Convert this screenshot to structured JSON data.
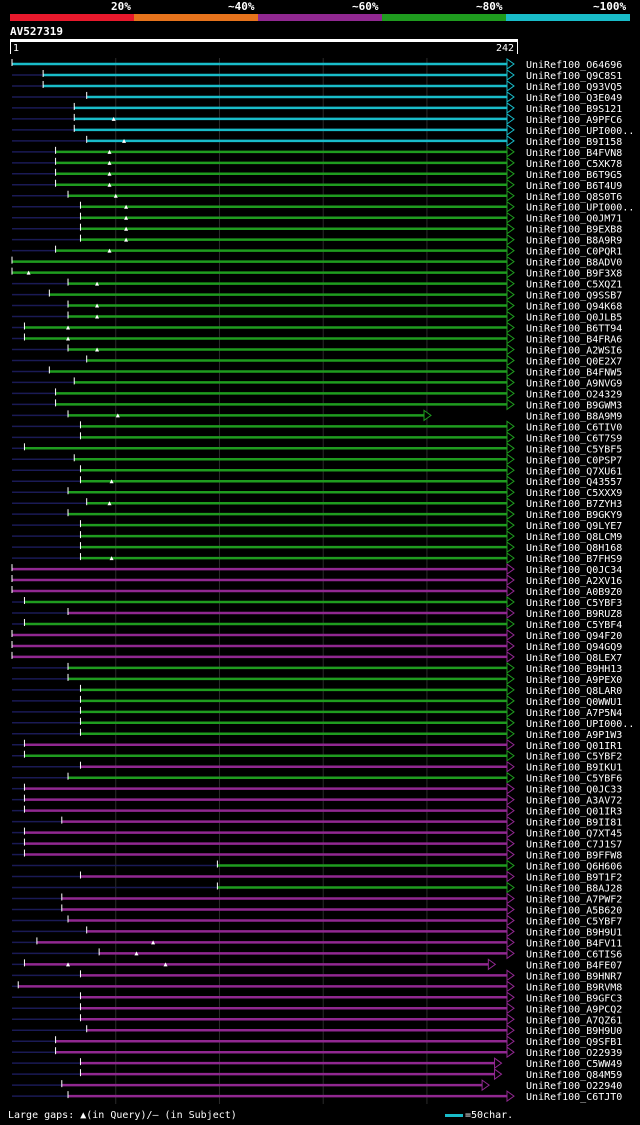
{
  "legend": {
    "segments": [
      {
        "label": "20%",
        "color": "#e8192c"
      },
      {
        "label": "~40%",
        "color": "#e6731c"
      },
      {
        "label": "~60%",
        "color": "#912891"
      },
      {
        "label": "~80%",
        "color": "#1f9c1f"
      },
      {
        "label": "~100%",
        "color": "#19bcc9"
      }
    ]
  },
  "query": {
    "id": "AV527319",
    "start": "1",
    "end": "242"
  },
  "chart_data": {
    "type": "alignment",
    "query_length": 242,
    "colors": {
      "cyan": "#19bcc9",
      "green": "#1f9c1f",
      "purple": "#912891"
    },
    "hits": [
      {
        "name": "UniRef100_O64696",
        "start": 1,
        "end": 242,
        "color": "cyan",
        "gaps": []
      },
      {
        "name": "UniRef100_Q9C8S1",
        "start": 16,
        "end": 242,
        "color": "cyan",
        "gaps": []
      },
      {
        "name": "UniRef100_Q93VQ5",
        "start": 16,
        "end": 242,
        "color": "cyan",
        "gaps": []
      },
      {
        "name": "UniRef100_Q3E049",
        "start": 37,
        "end": 242,
        "color": "cyan",
        "gaps": []
      },
      {
        "name": "UniRef100_B9S121",
        "start": 31,
        "end": 242,
        "color": "cyan",
        "gaps": []
      },
      {
        "name": "UniRef100_A9PFC6",
        "start": 31,
        "end": 242,
        "color": "cyan",
        "gaps": [
          50
        ]
      },
      {
        "name": "UniRef100_UPI000..",
        "start": 31,
        "end": 242,
        "color": "cyan",
        "gaps": []
      },
      {
        "name": "UniRef100_B9I158",
        "start": 37,
        "end": 242,
        "color": "cyan",
        "gaps": [
          55
        ]
      },
      {
        "name": "UniRef100_B4FVN8",
        "start": 22,
        "end": 242,
        "color": "green",
        "gaps": [
          48
        ]
      },
      {
        "name": "UniRef100_C5XK78",
        "start": 22,
        "end": 242,
        "color": "green",
        "gaps": [
          48
        ]
      },
      {
        "name": "UniRef100_B6T9G5",
        "start": 22,
        "end": 242,
        "color": "green",
        "gaps": [
          48
        ]
      },
      {
        "name": "UniRef100_B6T4U9",
        "start": 22,
        "end": 242,
        "color": "green",
        "gaps": [
          48
        ]
      },
      {
        "name": "UniRef100_Q8S0T6",
        "start": 28,
        "end": 242,
        "color": "green",
        "gaps": [
          51
        ]
      },
      {
        "name": "UniRef100_UPI000..",
        "start": 34,
        "end": 242,
        "color": "green",
        "gaps": [
          56
        ]
      },
      {
        "name": "UniRef100_Q0JM71",
        "start": 34,
        "end": 242,
        "color": "green",
        "gaps": [
          56
        ]
      },
      {
        "name": "UniRef100_B9EXB8",
        "start": 34,
        "end": 242,
        "color": "green",
        "gaps": [
          56
        ]
      },
      {
        "name": "UniRef100_B8A9R9",
        "start": 34,
        "end": 242,
        "color": "green",
        "gaps": [
          56
        ]
      },
      {
        "name": "UniRef100_C0PQR1",
        "start": 22,
        "end": 242,
        "color": "green",
        "gaps": [
          48
        ]
      },
      {
        "name": "UniRef100_B8ADV0",
        "start": 1,
        "end": 242,
        "color": "green",
        "gaps": []
      },
      {
        "name": "UniRef100_B9F3X8",
        "start": 1,
        "end": 242,
        "color": "green",
        "gaps": [
          9
        ]
      },
      {
        "name": "UniRef100_C5XQZ1",
        "start": 28,
        "end": 242,
        "color": "green",
        "gaps": [
          42
        ]
      },
      {
        "name": "UniRef100_Q9SSB7",
        "start": 19,
        "end": 242,
        "color": "green",
        "gaps": []
      },
      {
        "name": "UniRef100_Q94K68",
        "start": 28,
        "end": 242,
        "color": "green",
        "gaps": [
          42
        ]
      },
      {
        "name": "UniRef100_Q0JLB5",
        "start": 28,
        "end": 242,
        "color": "green",
        "gaps": [
          42
        ]
      },
      {
        "name": "UniRef100_B6TT94",
        "start": 7,
        "end": 242,
        "color": "green",
        "gaps": [
          28
        ]
      },
      {
        "name": "UniRef100_B4FRA6",
        "start": 7,
        "end": 242,
        "color": "green",
        "gaps": [
          28
        ]
      },
      {
        "name": "UniRef100_A2WSI6",
        "start": 28,
        "end": 242,
        "color": "green",
        "gaps": [
          42
        ]
      },
      {
        "name": "UniRef100_Q0E2X7",
        "start": 37,
        "end": 242,
        "color": "green",
        "gaps": []
      },
      {
        "name": "UniRef100_B4FNW5",
        "start": 19,
        "end": 242,
        "color": "green",
        "gaps": []
      },
      {
        "name": "UniRef100_A9NVG9",
        "start": 31,
        "end": 242,
        "color": "green",
        "gaps": []
      },
      {
        "name": "UniRef100_O24329",
        "start": 22,
        "end": 242,
        "color": "green",
        "gaps": []
      },
      {
        "name": "UniRef100_B9GWM3",
        "start": 22,
        "end": 242,
        "color": "green",
        "gaps": []
      },
      {
        "name": "UniRef100_B8A9M9",
        "start": 28,
        "end": 202,
        "color": "green",
        "gaps": [
          52
        ]
      },
      {
        "name": "UniRef100_C6TIV0",
        "start": 34,
        "end": 242,
        "color": "green",
        "gaps": []
      },
      {
        "name": "UniRef100_C6T7S9",
        "start": 34,
        "end": 242,
        "color": "green",
        "gaps": []
      },
      {
        "name": "UniRef100_C5YBF5",
        "start": 7,
        "end": 242,
        "color": "green",
        "gaps": []
      },
      {
        "name": "UniRef100_C0PSP7",
        "start": 31,
        "end": 242,
        "color": "green",
        "gaps": []
      },
      {
        "name": "UniRef100_Q7XU61",
        "start": 34,
        "end": 242,
        "color": "green",
        "gaps": []
      },
      {
        "name": "UniRef100_Q43557",
        "start": 34,
        "end": 242,
        "color": "green",
        "gaps": [
          49
        ]
      },
      {
        "name": "UniRef100_C5XXX9",
        "start": 28,
        "end": 242,
        "color": "green",
        "gaps": []
      },
      {
        "name": "UniRef100_B7ZYH3",
        "start": 37,
        "end": 242,
        "color": "green",
        "gaps": [
          48
        ]
      },
      {
        "name": "UniRef100_B9GKY9",
        "start": 28,
        "end": 242,
        "color": "green",
        "gaps": []
      },
      {
        "name": "UniRef100_Q9LYE7",
        "start": 34,
        "end": 242,
        "color": "green",
        "gaps": []
      },
      {
        "name": "UniRef100_Q8LCM9",
        "start": 34,
        "end": 242,
        "color": "green",
        "gaps": []
      },
      {
        "name": "UniRef100_Q8H168",
        "start": 34,
        "end": 242,
        "color": "green",
        "gaps": []
      },
      {
        "name": "UniRef100_B7FHS9",
        "start": 34,
        "end": 242,
        "color": "green",
        "gaps": [
          49
        ]
      },
      {
        "name": "UniRef100_Q0JC34",
        "start": 1,
        "end": 242,
        "color": "purple",
        "gaps": []
      },
      {
        "name": "UniRef100_A2XV16",
        "start": 1,
        "end": 242,
        "color": "purple",
        "gaps": []
      },
      {
        "name": "UniRef100_A0B9Z0",
        "start": 1,
        "end": 242,
        "color": "purple",
        "gaps": []
      },
      {
        "name": "UniRef100_C5YBF3",
        "start": 7,
        "end": 242,
        "color": "green",
        "gaps": []
      },
      {
        "name": "UniRef100_B9RUZ8",
        "start": 28,
        "end": 242,
        "color": "purple",
        "gaps": []
      },
      {
        "name": "UniRef100_C5YBF4",
        "start": 7,
        "end": 242,
        "color": "green",
        "gaps": []
      },
      {
        "name": "UniRef100_Q94F20",
        "start": 1,
        "end": 242,
        "color": "purple",
        "gaps": []
      },
      {
        "name": "UniRef100_Q94GQ9",
        "start": 1,
        "end": 242,
        "color": "purple",
        "gaps": []
      },
      {
        "name": "UniRef100_Q8LEX7",
        "start": 1,
        "end": 242,
        "color": "purple",
        "gaps": []
      },
      {
        "name": "UniRef100_B9HH13",
        "start": 28,
        "end": 242,
        "color": "green",
        "gaps": []
      },
      {
        "name": "UniRef100_A9PEX0",
        "start": 28,
        "end": 242,
        "color": "green",
        "gaps": []
      },
      {
        "name": "UniRef100_Q8LAR0",
        "start": 34,
        "end": 242,
        "color": "green",
        "gaps": []
      },
      {
        "name": "UniRef100_Q0WWU1",
        "start": 34,
        "end": 242,
        "color": "green",
        "gaps": []
      },
      {
        "name": "UniRef100_A7P5N4",
        "start": 34,
        "end": 242,
        "color": "green",
        "gaps": []
      },
      {
        "name": "UniRef100_UPI000..",
        "start": 34,
        "end": 242,
        "color": "green",
        "gaps": []
      },
      {
        "name": "UniRef100_A9P1W3",
        "start": 34,
        "end": 242,
        "color": "green",
        "gaps": []
      },
      {
        "name": "UniRef100_Q01IR1",
        "start": 7,
        "end": 242,
        "color": "purple",
        "gaps": []
      },
      {
        "name": "UniRef100_C5YBF2",
        "start": 7,
        "end": 242,
        "color": "green",
        "gaps": []
      },
      {
        "name": "UniRef100_B9IKU1",
        "start": 34,
        "end": 242,
        "color": "purple",
        "gaps": []
      },
      {
        "name": "UniRef100_C5YBF6",
        "start": 28,
        "end": 242,
        "color": "green",
        "gaps": []
      },
      {
        "name": "UniRef100_Q0JC33",
        "start": 7,
        "end": 242,
        "color": "purple",
        "gaps": []
      },
      {
        "name": "UniRef100_A3AV72",
        "start": 7,
        "end": 242,
        "color": "purple",
        "gaps": []
      },
      {
        "name": "UniRef100_Q01IR3",
        "start": 7,
        "end": 242,
        "color": "purple",
        "gaps": []
      },
      {
        "name": "UniRef100_B9II81",
        "start": 25,
        "end": 242,
        "color": "purple",
        "gaps": []
      },
      {
        "name": "UniRef100_Q7XT45",
        "start": 7,
        "end": 242,
        "color": "purple",
        "gaps": []
      },
      {
        "name": "UniRef100_C7J1S7",
        "start": 7,
        "end": 242,
        "color": "purple",
        "gaps": []
      },
      {
        "name": "UniRef100_B9FFW8",
        "start": 7,
        "end": 242,
        "color": "purple",
        "gaps": []
      },
      {
        "name": "UniRef100_Q6H606",
        "start": 100,
        "end": 242,
        "color": "green",
        "gaps": []
      },
      {
        "name": "UniRef100_B9T1F2",
        "start": 34,
        "end": 242,
        "color": "purple",
        "gaps": []
      },
      {
        "name": "UniRef100_B8AJ28",
        "start": 100,
        "end": 242,
        "color": "green",
        "gaps": []
      },
      {
        "name": "UniRef100_A7PWF2",
        "start": 25,
        "end": 242,
        "color": "purple",
        "gaps": []
      },
      {
        "name": "UniRef100_A5B620",
        "start": 25,
        "end": 242,
        "color": "purple",
        "gaps": []
      },
      {
        "name": "UniRef100_C5YBF7",
        "start": 28,
        "end": 242,
        "color": "purple",
        "gaps": []
      },
      {
        "name": "UniRef100_B9H9U1",
        "start": 37,
        "end": 242,
        "color": "purple",
        "gaps": []
      },
      {
        "name": "UniRef100_B4FV11",
        "start": 13,
        "end": 242,
        "color": "purple",
        "gaps": [
          69
        ]
      },
      {
        "name": "UniRef100_C6TIS6",
        "start": 43,
        "end": 242,
        "color": "purple",
        "gaps": [
          61
        ]
      },
      {
        "name": "UniRef100_B4FE07",
        "start": 7,
        "end": 233,
        "color": "purple",
        "gaps": [
          28,
          75
        ]
      },
      {
        "name": "UniRef100_B9HNR7",
        "start": 34,
        "end": 242,
        "color": "purple",
        "gaps": []
      },
      {
        "name": "UniRef100_B9RVM8",
        "start": 4,
        "end": 242,
        "color": "purple",
        "gaps": []
      },
      {
        "name": "UniRef100_B9GFC3",
        "start": 34,
        "end": 242,
        "color": "purple",
        "gaps": []
      },
      {
        "name": "UniRef100_A9PCQ2",
        "start": 34,
        "end": 242,
        "color": "purple",
        "gaps": []
      },
      {
        "name": "UniRef100_A7QZ61",
        "start": 34,
        "end": 242,
        "color": "purple",
        "gaps": []
      },
      {
        "name": "UniRef100_B9H9U0",
        "start": 37,
        "end": 242,
        "color": "purple",
        "gaps": []
      },
      {
        "name": "UniRef100_Q9SFB1",
        "start": 22,
        "end": 242,
        "color": "purple",
        "gaps": []
      },
      {
        "name": "UniRef100_O22939",
        "start": 22,
        "end": 242,
        "color": "purple",
        "gaps": []
      },
      {
        "name": "UniRef100_C5WW49",
        "start": 34,
        "end": 236,
        "color": "purple",
        "gaps": []
      },
      {
        "name": "UniRef100_Q84M59",
        "start": 34,
        "end": 236,
        "color": "purple",
        "gaps": []
      },
      {
        "name": "UniRef100_O22940",
        "start": 25,
        "end": 230,
        "color": "purple",
        "gaps": []
      },
      {
        "name": "UniRef100_C6TJT0",
        "start": 28,
        "end": 242,
        "color": "purple",
        "gaps": []
      }
    ]
  },
  "footer": {
    "gaps_text": "Large gaps: ▲(in Query)/– (in Subject)",
    "scale_text": "=50char."
  }
}
